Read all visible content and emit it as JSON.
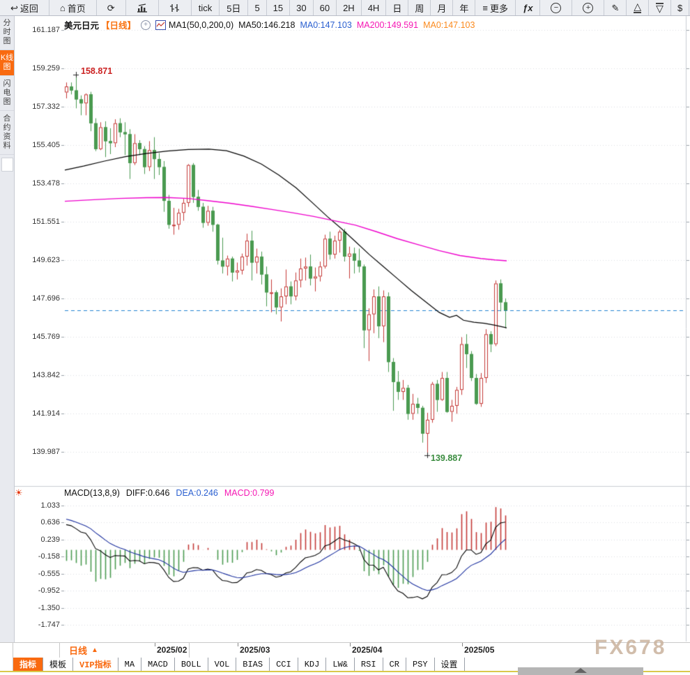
{
  "toolbar": {
    "items": [
      {
        "name": "back-button",
        "glyph": "↩",
        "label": "返回",
        "cls": "wide"
      },
      {
        "name": "home-button",
        "glyph": "⌂",
        "label": "首页",
        "cls": "wide"
      },
      {
        "name": "refresh-button",
        "glyph": "⟳",
        "label": "",
        "cls": "wide"
      },
      {
        "name": "bar-chart-button",
        "icon": "bars",
        "label": "",
        "cls": "wide"
      },
      {
        "name": "volume-chart-button",
        "icon": "candles",
        "label": "",
        "cls": "wide"
      },
      {
        "name": "interval-tick-button",
        "label": "tick",
        "cls": ""
      },
      {
        "name": "interval-5d-button",
        "label": "5日",
        "cls": ""
      },
      {
        "name": "interval-5-button",
        "label": "5",
        "cls": "num"
      },
      {
        "name": "interval-15-button",
        "label": "15",
        "cls": "num"
      },
      {
        "name": "interval-30-button",
        "label": "30",
        "cls": "num"
      },
      {
        "name": "interval-60-button",
        "label": "60",
        "cls": "num"
      },
      {
        "name": "interval-2h-button",
        "label": "2H",
        "cls": "num"
      },
      {
        "name": "interval-4h-button",
        "label": "4H",
        "cls": "num"
      },
      {
        "name": "interval-day-button",
        "label": "日",
        "cls": "num"
      },
      {
        "name": "interval-week-button",
        "label": "周",
        "cls": "num"
      },
      {
        "name": "interval-month-button",
        "label": "月",
        "cls": "num"
      },
      {
        "name": "interval-year-button",
        "label": "年",
        "cls": "num"
      },
      {
        "name": "more-button",
        "glyph": "≡",
        "label": "更多",
        "cls": ""
      },
      {
        "name": "formula-button",
        "label": "ƒx",
        "cls": ""
      },
      {
        "name": "zoom-out-button",
        "icon": "zoom-out",
        "label": "",
        "cls": "wide"
      },
      {
        "name": "zoom-in-button",
        "icon": "zoom-in",
        "label": "",
        "cls": "wide"
      },
      {
        "name": "draw-button",
        "glyph": "✎",
        "label": "",
        "cls": ""
      },
      {
        "name": "triangle-up-button",
        "icon": "tri-up",
        "label": "",
        "cls": ""
      },
      {
        "name": "triangle-down-button",
        "icon": "tri-down",
        "label": "",
        "cls": ""
      },
      {
        "name": "currency-button",
        "label": "$",
        "cls": "num"
      }
    ]
  },
  "sidebar": {
    "items": [
      {
        "name": "sidebar-item-time-chart",
        "label": "分时图",
        "active": false
      },
      {
        "name": "sidebar-item-kline-chart",
        "label": "K线图",
        "active": true
      },
      {
        "name": "sidebar-item-lightning-chart",
        "label": "闪电图",
        "active": false
      },
      {
        "name": "sidebar-item-contract-info",
        "label": "合约资料",
        "active": false
      }
    ]
  },
  "chart_header": {
    "symbol": "美元日元",
    "period": "【日线】",
    "ma_settings": "MA1(50,0,200,0)",
    "ma50": "MA50:146.218",
    "ma0_blue": "MA0:147.103",
    "ma200": "MA200:149.591",
    "ma0_orange": "MA0:147.103"
  },
  "macd_header": {
    "params": "MACD(13,8,9)",
    "diff": "DIFF:0.646",
    "dea": "DEA:0.246",
    "macd": "MACD:0.799"
  },
  "annotations": {
    "high": "158.871",
    "low": "139.887"
  },
  "bottom": {
    "pane_label": "日线",
    "pane_arrow": "▲",
    "dates": [
      "2025/02",
      "2025/03",
      "2025/04",
      "2025/05"
    ],
    "tabs": [
      {
        "label": "指标",
        "style": "active"
      },
      {
        "label": "模板",
        "style": ""
      },
      {
        "label": "VIP指标",
        "style": "vip"
      },
      {
        "label": "MA",
        "style": ""
      },
      {
        "label": "MACD",
        "style": ""
      },
      {
        "label": "BOLL",
        "style": ""
      },
      {
        "label": "VOL",
        "style": ""
      },
      {
        "label": "BIAS",
        "style": ""
      },
      {
        "label": "CCI",
        "style": ""
      },
      {
        "label": "KDJ",
        "style": ""
      },
      {
        "label": "LW&",
        "style": ""
      },
      {
        "label": "RSI",
        "style": ""
      },
      {
        "label": "CR",
        "style": ""
      },
      {
        "label": "PSY",
        "style": ""
      },
      {
        "label": "设置",
        "style": ""
      }
    ],
    "watermark": "FX678"
  },
  "chart_data": {
    "type": "candlestick",
    "title": "USD/JPY (美元日元) Daily with MA50/MA200 and MACD(13,8,9)",
    "y_axis": {
      "labels": [
        "161.187",
        "159.259",
        "157.332",
        "155.405",
        "153.478",
        "151.551",
        "149.623",
        "147.696",
        "145.769",
        "143.842",
        "141.914",
        "139.987"
      ],
      "max": 161.187,
      "min": 139.987
    },
    "macd_axis": {
      "labels": [
        "1.033",
        "0.636",
        "0.239",
        "-0.158",
        "-0.555",
        "-0.952",
        "-1.350",
        "-1.747"
      ],
      "max": 1.033,
      "min": -1.747
    },
    "x_ticks": [
      "2025/02",
      "2025/03",
      "2025/04",
      "2025/05"
    ],
    "current_price": 147.103,
    "high_marker": {
      "value": 158.871,
      "index": 2
    },
    "low_marker": {
      "value": 139.887,
      "index": 74
    },
    "candles": [
      [
        158.05,
        158.55,
        157.75,
        158.35
      ],
      [
        158.35,
        158.55,
        157.95,
        158.15
      ],
      [
        158.15,
        158.87,
        157.25,
        157.7
      ],
      [
        157.7,
        157.9,
        156.9,
        157.5
      ],
      [
        157.5,
        158.0,
        156.9,
        157.95
      ],
      [
        157.95,
        158.08,
        156.1,
        156.5
      ],
      [
        156.5,
        156.75,
        155.1,
        155.2
      ],
      [
        155.2,
        156.55,
        155.15,
        156.3
      ],
      [
        156.3,
        156.6,
        154.8,
        155.6
      ],
      [
        155.6,
        156.25,
        154.95,
        155.5
      ],
      [
        155.5,
        156.7,
        155.3,
        156.5
      ],
      [
        156.5,
        156.75,
        155.8,
        156.05
      ],
      [
        156.05,
        156.55,
        154.9,
        155.95
      ],
      [
        155.95,
        156.2,
        153.7,
        154.5
      ],
      [
        154.5,
        155.95,
        154.4,
        155.5
      ],
      [
        155.5,
        155.65,
        154.9,
        155.2
      ],
      [
        155.2,
        155.35,
        153.95,
        154.3
      ],
      [
        154.3,
        155.6,
        154.1,
        155.15
      ],
      [
        155.15,
        155.8,
        153.7,
        154.7
      ],
      [
        154.7,
        155.0,
        153.9,
        154.3
      ],
      [
        154.3,
        154.6,
        152.05,
        152.6
      ],
      [
        152.6,
        152.9,
        151.2,
        151.4
      ],
      [
        151.4,
        152.25,
        150.9,
        151.4
      ],
      [
        151.4,
        152.2,
        151.15,
        152.0
      ],
      [
        152.0,
        152.7,
        151.6,
        152.5
      ],
      [
        152.5,
        154.45,
        152.3,
        154.4
      ],
      [
        154.4,
        154.5,
        152.5,
        152.8
      ],
      [
        152.8,
        153.15,
        152.1,
        152.3
      ],
      [
        152.3,
        152.5,
        151.25,
        151.5
      ],
      [
        151.5,
        152.35,
        151.35,
        152.1
      ],
      [
        152.1,
        152.3,
        151.05,
        151.4
      ],
      [
        151.4,
        151.45,
        149.4,
        149.6
      ],
      [
        149.6,
        150.75,
        148.95,
        149.3
      ],
      [
        149.3,
        149.85,
        148.85,
        149.7
      ],
      [
        149.7,
        149.8,
        148.55,
        149.0
      ],
      [
        149.0,
        149.5,
        148.65,
        149.1
      ],
      [
        149.1,
        149.95,
        148.9,
        149.8
      ],
      [
        149.8,
        150.95,
        149.35,
        150.6
      ],
      [
        150.6,
        151.1,
        148.6,
        149.5
      ],
      [
        149.5,
        150.2,
        148.95,
        149.8
      ],
      [
        149.8,
        150.05,
        148.4,
        148.9
      ],
      [
        148.9,
        149.3,
        147.3,
        148.0
      ],
      [
        148.0,
        148.65,
        147.0,
        148.0
      ],
      [
        148.0,
        148.1,
        146.9,
        147.25
      ],
      [
        147.25,
        148.2,
        146.54,
        147.8
      ],
      [
        147.8,
        149.15,
        147.4,
        148.3
      ],
      [
        148.3,
        148.55,
        147.4,
        147.8
      ],
      [
        147.8,
        149.0,
        147.6,
        148.6
      ],
      [
        148.6,
        149.7,
        148.25,
        149.2
      ],
      [
        149.2,
        149.75,
        148.6,
        149.3
      ],
      [
        149.3,
        149.9,
        148.35,
        148.7
      ],
      [
        148.7,
        149.25,
        148.05,
        148.8
      ],
      [
        148.8,
        149.55,
        148.55,
        149.3
      ],
      [
        149.3,
        150.9,
        149.2,
        150.7
      ],
      [
        150.7,
        151.05,
        149.65,
        149.9
      ],
      [
        149.9,
        150.85,
        149.7,
        150.6
      ],
      [
        150.6,
        151.15,
        150.0,
        151.05
      ],
      [
        151.05,
        151.2,
        149.55,
        149.8
      ],
      [
        149.8,
        150.3,
        148.7,
        149.95
      ],
      [
        149.95,
        150.25,
        148.95,
        149.6
      ],
      [
        149.6,
        150.2,
        149.0,
        149.3
      ],
      [
        149.3,
        149.4,
        145.2,
        146.1
      ],
      [
        146.1,
        147.2,
        144.55,
        146.9
      ],
      [
        146.9,
        148.15,
        145.95,
        147.8
      ],
      [
        147.8,
        148.3,
        145.7,
        146.3
      ],
      [
        146.3,
        148.1,
        145.5,
        147.8
      ],
      [
        147.8,
        148.0,
        144.0,
        144.5
      ],
      [
        144.5,
        144.7,
        142.05,
        143.5
      ],
      [
        143.5,
        144.05,
        142.6,
        143.0
      ],
      [
        143.0,
        143.6,
        142.6,
        143.2
      ],
      [
        143.2,
        143.35,
        141.6,
        141.9
      ],
      [
        141.9,
        142.9,
        141.6,
        142.4
      ],
      [
        142.4,
        142.7,
        141.9,
        142.2
      ],
      [
        142.2,
        142.3,
        140.45,
        140.9
      ],
      [
        140.9,
        141.95,
        139.887,
        141.6
      ],
      [
        141.6,
        143.5,
        141.45,
        143.4
      ],
      [
        143.4,
        143.6,
        142.0,
        142.6
      ],
      [
        142.6,
        144.0,
        142.55,
        143.7
      ],
      [
        143.7,
        144.0,
        141.95,
        142.0
      ],
      [
        142.0,
        142.6,
        141.5,
        142.3
      ],
      [
        142.3,
        143.25,
        141.9,
        143.1
      ],
      [
        143.1,
        145.75,
        142.85,
        145.4
      ],
      [
        145.4,
        145.9,
        144.2,
        144.9
      ],
      [
        144.9,
        145.05,
        143.55,
        143.7
      ],
      [
        143.7,
        143.9,
        142.35,
        142.4
      ],
      [
        142.4,
        143.95,
        142.25,
        143.7
      ],
      [
        143.7,
        146.15,
        143.45,
        145.9
      ],
      [
        145.9,
        146.05,
        145.0,
        145.4
      ],
      [
        145.4,
        148.6,
        145.3,
        148.45
      ],
      [
        148.45,
        148.65,
        147.05,
        147.5
      ],
      [
        147.5,
        147.7,
        146.2,
        147.1
      ]
    ],
    "warmup_closes": [
      149.6,
      150.55,
      150.6,
      150.1,
      150.05,
      151.2,
      152.0,
      153.7,
      152.7,
      153.6,
      154.8,
      156.8,
      157.4,
      156.3,
      157.2,
      157.85,
      157.8,
      157.9,
      156.9,
      157.3,
      157.1,
      156.0,
      157.3,
      158.1
    ],
    "ma50_line": [
      [
        93,
        154.15
      ],
      [
        120,
        154.35
      ],
      [
        150,
        154.6
      ],
      [
        180,
        154.82
      ],
      [
        210,
        154.98
      ],
      [
        240,
        155.1
      ],
      [
        270,
        155.18
      ],
      [
        300,
        155.2
      ],
      [
        325,
        155.12
      ],
      [
        350,
        154.85
      ],
      [
        375,
        154.45
      ],
      [
        400,
        153.9
      ],
      [
        425,
        153.25
      ],
      [
        450,
        152.45
      ],
      [
        470,
        151.8
      ],
      [
        490,
        151.2
      ],
      [
        510,
        150.55
      ],
      [
        530,
        149.9
      ],
      [
        550,
        149.3
      ],
      [
        570,
        148.7
      ],
      [
        590,
        148.1
      ],
      [
        610,
        147.55
      ],
      [
        630,
        147.0
      ],
      [
        645,
        146.75
      ],
      [
        655,
        146.85
      ],
      [
        665,
        146.6
      ],
      [
        680,
        146.5
      ],
      [
        695,
        146.45
      ],
      [
        710,
        146.35
      ],
      [
        727,
        146.22
      ]
    ],
    "ma200_line": [
      [
        93,
        152.58
      ],
      [
        130,
        152.65
      ],
      [
        170,
        152.72
      ],
      [
        210,
        152.76
      ],
      [
        240,
        152.77
      ],
      [
        270,
        152.72
      ],
      [
        300,
        152.6
      ],
      [
        330,
        152.48
      ],
      [
        360,
        152.33
      ],
      [
        390,
        152.17
      ],
      [
        420,
        152.0
      ],
      [
        450,
        151.82
      ],
      [
        480,
        151.6
      ],
      [
        510,
        151.38
      ],
      [
        540,
        151.05
      ],
      [
        570,
        150.7
      ],
      [
        600,
        150.4
      ],
      [
        630,
        150.1
      ],
      [
        660,
        149.85
      ],
      [
        690,
        149.7
      ],
      [
        710,
        149.63
      ],
      [
        727,
        149.59
      ]
    ],
    "macd": {
      "fast": 8,
      "slow": 13,
      "signal": 9,
      "diff": 0.646,
      "dea": 0.246,
      "macd": 0.799
    },
    "colors": {
      "up": "#c43836",
      "down": "#4a9a50",
      "ma50": "#000000",
      "ma200": "#ee00cc",
      "diff": "#000000",
      "dea": "#1b2f9e",
      "current_line": "#2080d0",
      "grid": "#d9dde2"
    }
  }
}
